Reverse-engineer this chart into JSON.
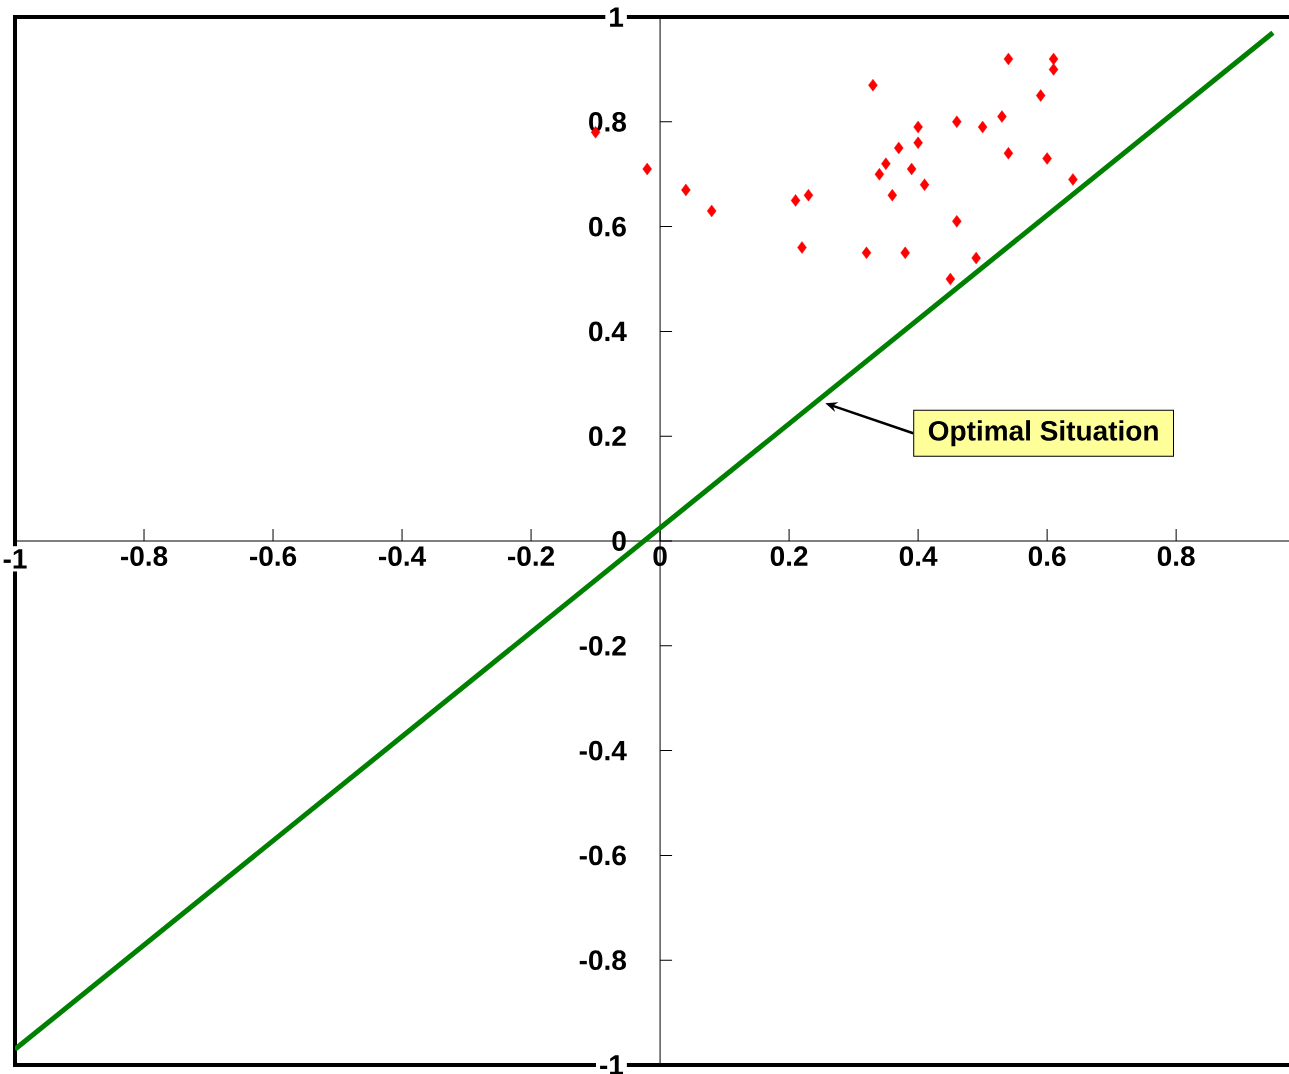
{
  "chart_data": {
    "type": "scatter",
    "xlim": [
      -1,
      0.975
    ],
    "ylim": [
      -1,
      1
    ],
    "xticks": [
      -1,
      -0.8,
      -0.6,
      -0.4,
      -0.2,
      0,
      0.2,
      0.4,
      0.6,
      0.8
    ],
    "yticks": [
      -1,
      -0.8,
      -0.6,
      -0.4,
      -0.2,
      0,
      0.2,
      0.4,
      0.6,
      0.8,
      1
    ],
    "grid": false,
    "marker": "diamond",
    "series": [
      {
        "color": "#ff0000",
        "x": [
          -0.1,
          -0.02,
          0.04,
          0.08,
          0.21,
          0.23,
          0.22,
          0.32,
          0.33,
          0.34,
          0.35,
          0.37,
          0.36,
          0.38,
          0.39,
          0.4,
          0.4,
          0.41,
          0.45,
          0.46,
          0.46,
          0.49,
          0.5,
          0.53,
          0.54,
          0.54,
          0.59,
          0.6,
          0.61,
          0.61,
          0.64
        ],
        "values": [
          0.78,
          0.71,
          0.67,
          0.63,
          0.65,
          0.66,
          0.56,
          0.55,
          0.87,
          0.7,
          0.72,
          0.75,
          0.66,
          0.55,
          0.71,
          0.76,
          0.79,
          0.68,
          0.5,
          0.8,
          0.61,
          0.54,
          0.79,
          0.81,
          0.92,
          0.74,
          0.85,
          0.73,
          0.92,
          0.9,
          0.69
        ]
      },
      {
        "type": "line",
        "color": "#008000",
        "marker": "none",
        "line_style": "solid",
        "x": [
          -1,
          0.95
        ],
        "values": [
          -0.97,
          0.97
        ]
      }
    ],
    "annotations": [
      {
        "text": "Optimal Situation",
        "x": 0.256,
        "y": 0.263
      }
    ]
  }
}
